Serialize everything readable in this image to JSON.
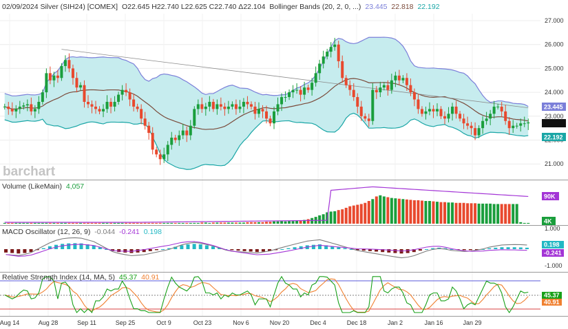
{
  "header": {
    "main": {
      "symbol": "02/09/2024 Silver (SIH24) [COMEX]",
      "ohlc": "O22.645 H22.740 L22.625 C22.740 Δ22.104",
      "study": "Bollinger Bands (20, 2, 0, ...)",
      "v1": "23.445",
      "v2": "22.818",
      "v3": "22.192"
    },
    "volume": {
      "label": "Volume (LikeMain)",
      "value": "4,057"
    },
    "macd": {
      "label": "MACD Oscillator (12, 26, 9)",
      "v1": "-0.044",
      "v2": "-0.241",
      "v3": "0.198"
    },
    "rsi": {
      "label": "Relative Strength Index (14, MA, 5)",
      "v1": "45.37",
      "v2": "40.91"
    }
  },
  "logo": "barchart",
  "colors": {
    "up": "#1a9e3c",
    "down": "#e8492e",
    "band_fill": "#c6ecee",
    "band_upper": "#7b7fd9",
    "band_lower": "#1aa6a6",
    "mid": "#7a4a3a",
    "volume_line": "#a334d6",
    "macd_line": "#7b7b7b",
    "signal_line": "#a334d6",
    "hist_pos": "#22b8c4",
    "hist_neg": "#7a1818",
    "rsi_line": "#18a018",
    "rsi_ma": "#f08030"
  },
  "chart_data": [
    {
      "type": "candlestick",
      "title": "02/09/2024 Silver (SIH24) [COMEX]",
      "x_ticks": [
        "Aug 14",
        "Aug 28",
        "Sep 11",
        "Sep 25",
        "Oct 9",
        "Oct 23",
        "Nov 6",
        "Nov 20",
        "Dec 4",
        "Dec 18",
        "Jan 2",
        "Jan 16",
        "Jan 29"
      ],
      "y_ticks": [
        "27.000",
        "26.000",
        "25.000",
        "24.000",
        "23.000",
        "22.000",
        "21.000"
      ],
      "ylim": [
        20.8,
        27.3
      ],
      "close": [
        23.4,
        23.3,
        23.2,
        23.3,
        23.4,
        23.45,
        23.5,
        23.2,
        23.3,
        23.6,
        24.0,
        24.8,
        24.5,
        24.7,
        24.6,
        25.1,
        25.35,
        25.0,
        24.6,
        24.2,
        24.3,
        23.6,
        23.5,
        23.4,
        23.3,
        23.2,
        23.3,
        23.6,
        23.4,
        23.6,
        23.9,
        24.1,
        24.0,
        23.7,
        23.4,
        23.3,
        22.9,
        22.6,
        22.3,
        21.6,
        21.4,
        21.2,
        21.4,
        21.8,
        22.1,
        22.0,
        22.2,
        22.4,
        22.2,
        22.6,
        23.3,
        23.5,
        23.3,
        23.4,
        23.6,
        23.3,
        23.5,
        23.4,
        23.3,
        23.4,
        23.5,
        23.3,
        23.4,
        23.6,
        23.5,
        23.4,
        23.1,
        23.3,
        23.2,
        22.9,
        22.7,
        23.2,
        23.5,
        23.8,
        23.8,
        24.0,
        24.1,
        24.1,
        23.9,
        24.2,
        24.1,
        24.4,
        24.8,
        25.2,
        25.5,
        25.7,
        25.9,
        26.0,
        25.3,
        24.6,
        24.3,
        24.1,
        23.8,
        23.4,
        23.0,
        22.9,
        22.8,
        24.1,
        24.0,
        24.2,
        24.3,
        24.1,
        24.5,
        24.7,
        24.5,
        24.6,
        24.3,
        24.0,
        23.7,
        23.3,
        23.1,
        23.2,
        23.3,
        23.2,
        23.3,
        23.0,
        22.9,
        23.1,
        23.4,
        23.1,
        22.9,
        22.7,
        22.6,
        22.5,
        22.2,
        22.5,
        22.8,
        22.9,
        23.1,
        23.4,
        23.4,
        23.2,
        22.8,
        22.5,
        22.6,
        22.6,
        22.7,
        22.7,
        22.74
      ],
      "bollinger": {
        "period": 20,
        "stdev": 2,
        "upper": 23.445,
        "middle": 22.818,
        "lower": 22.192
      }
    },
    {
      "type": "bar",
      "title": "Volume (LikeMain)",
      "y_ticks": [
        "90K",
        "4K"
      ],
      "last_value": 4057,
      "values": [
        2,
        2,
        2,
        2,
        2,
        2,
        2,
        2,
        2,
        2,
        2,
        2,
        2,
        2,
        2,
        2,
        2,
        2,
        2,
        2,
        2,
        2,
        2,
        2,
        2,
        2,
        2,
        2,
        2,
        2,
        2,
        2,
        2,
        2,
        2,
        2,
        2,
        2,
        2,
        2,
        2,
        2,
        2,
        2,
        2,
        2,
        2,
        2,
        2,
        2,
        2,
        2,
        3,
        3,
        2,
        3,
        3,
        3,
        3,
        3,
        3,
        3,
        3,
        3,
        4,
        4,
        4,
        4,
        4,
        5,
        5,
        6,
        6,
        7,
        6,
        7,
        7,
        8,
        9,
        10,
        12,
        15,
        18,
        22,
        25,
        30,
        32,
        33,
        36,
        38,
        42,
        46,
        48,
        50,
        52,
        55,
        60,
        65,
        72,
        75,
        72,
        70,
        68,
        67,
        66,
        65,
        64,
        63,
        62,
        62,
        61,
        60,
        60,
        59,
        58,
        57,
        57,
        56,
        56,
        55,
        55,
        55,
        54,
        54,
        54,
        53,
        53,
        53,
        53,
        52,
        52,
        52,
        52,
        52,
        52,
        52,
        4
      ],
      "volume_avg_peak": 90
    },
    {
      "type": "line",
      "title": "MACD Oscillator (12, 26, 9)",
      "y_ticks": [
        "1.000",
        "-1.000"
      ],
      "macd": -0.044,
      "signal": -0.241,
      "histogram": 0.198,
      "hist_shape": [
        -0.35,
        -0.4,
        -0.45,
        -0.4,
        -0.3,
        -0.1,
        0.1,
        0.3,
        0.45,
        0.55,
        0.6,
        0.62,
        0.6,
        0.5,
        0.4,
        0.2,
        0.0,
        -0.2,
        -0.3,
        -0.35,
        -0.4,
        -0.35,
        -0.3,
        -0.2,
        -0.1,
        0.0,
        0.1,
        0.25,
        0.4,
        0.5,
        0.55,
        0.5,
        0.4,
        0.3,
        0.15,
        0.0,
        -0.1,
        -0.15,
        -0.2,
        -0.25,
        -0.3,
        -0.25,
        -0.2,
        -0.1,
        0.0,
        0.1,
        0.2,
        0.3,
        0.4,
        0.45,
        0.5,
        0.4,
        0.3,
        0.2,
        0.1,
        0.0,
        -0.1,
        -0.15,
        -0.2,
        -0.25,
        -0.3,
        -0.35,
        -0.4,
        -0.45,
        -0.4,
        -0.3,
        -0.15,
        0.0,
        0.1,
        0.15,
        0.1,
        0.0,
        -0.05,
        -0.1,
        -0.1,
        -0.05,
        0.0,
        0.1,
        0.15,
        0.2,
        0.2,
        0.2,
        0.18,
        0.15
      ]
    },
    {
      "type": "line",
      "title": "Relative Strength Index (14, MA, 5)",
      "rsi": 45.37,
      "ma": 40.91
    }
  ]
}
